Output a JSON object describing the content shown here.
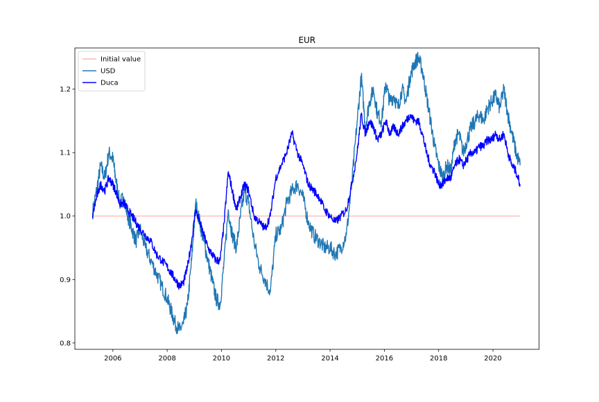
{
  "chart_data": {
    "type": "line",
    "title": "EUR",
    "xlabel": "",
    "ylabel": "",
    "xlim": [
      2004.6,
      2021.7
    ],
    "ylim": [
      0.79,
      1.265
    ],
    "x_ticks": [
      2006,
      2008,
      2010,
      2012,
      2014,
      2016,
      2018,
      2020
    ],
    "x_tick_labels": [
      "2006",
      "2008",
      "2010",
      "2012",
      "2014",
      "2016",
      "2018",
      "2020"
    ],
    "y_ticks": [
      0.8,
      0.9,
      1.0,
      1.1,
      1.2
    ],
    "y_tick_labels": [
      "0.8",
      "0.9",
      "1.0",
      "1.1",
      "1.2"
    ],
    "grid": false,
    "legend_position": "upper-left",
    "series": [
      {
        "name": "Initial value",
        "color": "#ffb3b3",
        "x": [
          2005.25,
          2021.0
        ],
        "y": [
          1.0,
          1.0
        ]
      },
      {
        "name": "USD",
        "color": "#1f77b4",
        "x": [
          2005.25,
          2005.4,
          2005.55,
          2005.7,
          2005.85,
          2006.0,
          2006.1,
          2006.25,
          2006.4,
          2006.55,
          2006.7,
          2006.85,
          2007.0,
          2007.2,
          2007.4,
          2007.6,
          2007.8,
          2008.0,
          2008.15,
          2008.3,
          2008.45,
          2008.6,
          2008.75,
          2008.9,
          2009.05,
          2009.2,
          2009.35,
          2009.5,
          2009.65,
          2009.8,
          2009.95,
          2010.1,
          2010.25,
          2010.4,
          2010.55,
          2010.7,
          2010.85,
          2011.0,
          2011.2,
          2011.4,
          2011.6,
          2011.8,
          2012.0,
          2012.2,
          2012.4,
          2012.6,
          2012.8,
          2013.0,
          2013.2,
          2013.4,
          2013.6,
          2013.8,
          2014.0,
          2014.2,
          2014.4,
          2014.6,
          2014.8,
          2015.0,
          2015.15,
          2015.3,
          2015.45,
          2015.6,
          2015.75,
          2015.9,
          2016.05,
          2016.2,
          2016.35,
          2016.5,
          2016.65,
          2016.8,
          2016.95,
          2017.1,
          2017.25,
          2017.4,
          2017.55,
          2017.7,
          2017.85,
          2018.0,
          2018.15,
          2018.3,
          2018.45,
          2018.6,
          2018.75,
          2018.9,
          2019.05,
          2019.2,
          2019.35,
          2019.5,
          2019.65,
          2019.8,
          2019.95,
          2020.1,
          2020.25,
          2020.4,
          2020.55,
          2020.7,
          2020.85,
          2021.0
        ],
        "y": [
          1.005,
          1.04,
          1.08,
          1.06,
          1.1,
          1.09,
          1.06,
          1.02,
          1.03,
          1.0,
          0.98,
          0.96,
          0.98,
          0.95,
          0.93,
          0.91,
          0.89,
          0.87,
          0.85,
          0.83,
          0.82,
          0.83,
          0.86,
          0.93,
          1.02,
          0.99,
          0.96,
          0.93,
          0.9,
          0.87,
          0.86,
          0.93,
          1.01,
          0.97,
          0.95,
          1.0,
          1.04,
          1.02,
          0.96,
          0.92,
          0.9,
          0.88,
          0.97,
          0.98,
          1.02,
          1.04,
          1.05,
          1.03,
          0.99,
          0.97,
          0.96,
          0.95,
          0.95,
          0.94,
          0.95,
          0.97,
          1.05,
          1.15,
          1.22,
          1.14,
          1.18,
          1.2,
          1.16,
          1.15,
          1.21,
          1.18,
          1.19,
          1.17,
          1.2,
          1.18,
          1.22,
          1.24,
          1.25,
          1.23,
          1.19,
          1.15,
          1.11,
          1.08,
          1.06,
          1.08,
          1.07,
          1.12,
          1.13,
          1.1,
          1.12,
          1.14,
          1.15,
          1.16,
          1.15,
          1.17,
          1.18,
          1.19,
          1.17,
          1.2,
          1.16,
          1.13,
          1.1,
          1.08
        ],
        "x_extra": [],
        "y_extra": []
      },
      {
        "name": "Duca",
        "color": "#0000ff",
        "x": [
          2005.25,
          2005.4,
          2005.55,
          2005.7,
          2005.85,
          2006.0,
          2006.1,
          2006.25,
          2006.4,
          2006.55,
          2006.7,
          2006.85,
          2007.0,
          2007.2,
          2007.4,
          2007.6,
          2007.8,
          2008.0,
          2008.15,
          2008.3,
          2008.45,
          2008.6,
          2008.75,
          2008.9,
          2009.05,
          2009.2,
          2009.35,
          2009.5,
          2009.65,
          2009.8,
          2009.95,
          2010.1,
          2010.25,
          2010.4,
          2010.55,
          2010.7,
          2010.85,
          2011.0,
          2011.2,
          2011.4,
          2011.6,
          2011.8,
          2012.0,
          2012.2,
          2012.4,
          2012.6,
          2012.8,
          2013.0,
          2013.2,
          2013.4,
          2013.6,
          2013.8,
          2014.0,
          2014.2,
          2014.4,
          2014.6,
          2014.8,
          2015.0,
          2015.15,
          2015.3,
          2015.45,
          2015.6,
          2015.75,
          2015.9,
          2016.05,
          2016.2,
          2016.35,
          2016.5,
          2016.65,
          2016.8,
          2016.95,
          2017.1,
          2017.25,
          2017.4,
          2017.55,
          2017.7,
          2017.85,
          2018.0,
          2018.15,
          2018.3,
          2018.45,
          2018.6,
          2018.75,
          2018.9,
          2019.05,
          2019.2,
          2019.35,
          2019.5,
          2019.65,
          2019.8,
          2019.95,
          2020.1,
          2020.25,
          2020.4,
          2020.55,
          2020.7,
          2020.85,
          2021.0
        ],
        "y": [
          1.0,
          1.03,
          1.05,
          1.04,
          1.06,
          1.05,
          1.04,
          1.02,
          1.02,
          1.01,
          1.0,
          0.99,
          0.98,
          0.97,
          0.96,
          0.94,
          0.93,
          0.92,
          0.91,
          0.9,
          0.89,
          0.895,
          0.92,
          0.96,
          1.01,
          0.99,
          0.97,
          0.95,
          0.94,
          0.93,
          0.93,
          0.99,
          1.07,
          1.04,
          1.01,
          1.03,
          1.05,
          1.04,
          1.0,
          0.99,
          0.98,
          1.0,
          1.06,
          1.08,
          1.1,
          1.13,
          1.1,
          1.08,
          1.05,
          1.04,
          1.03,
          1.01,
          1.0,
          0.99,
          1.0,
          1.01,
          1.05,
          1.1,
          1.16,
          1.13,
          1.15,
          1.14,
          1.12,
          1.13,
          1.15,
          1.13,
          1.14,
          1.13,
          1.14,
          1.15,
          1.16,
          1.15,
          1.15,
          1.13,
          1.1,
          1.08,
          1.07,
          1.05,
          1.05,
          1.06,
          1.06,
          1.08,
          1.09,
          1.08,
          1.09,
          1.1,
          1.1,
          1.11,
          1.11,
          1.12,
          1.12,
          1.13,
          1.12,
          1.13,
          1.1,
          1.08,
          1.07,
          1.05
        ],
        "x_extra": [],
        "y_extra": []
      }
    ]
  }
}
